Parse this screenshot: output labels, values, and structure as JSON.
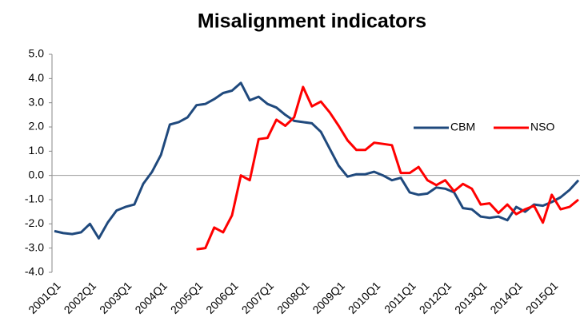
{
  "chart_data": {
    "type": "line",
    "title": "Misalignment indicators",
    "categories": [
      "2001Q1",
      null,
      null,
      null,
      "2002Q1",
      null,
      null,
      null,
      "2003Q1",
      null,
      null,
      null,
      "2004Q1",
      null,
      null,
      null,
      "2005Q1",
      null,
      null,
      null,
      "2006Q1",
      null,
      null,
      null,
      "2007Q1",
      null,
      null,
      null,
      "2008Q1",
      null,
      null,
      null,
      "2009Q1",
      null,
      null,
      null,
      "2010Q1",
      null,
      null,
      null,
      "2011Q1",
      null,
      null,
      null,
      "2012Q1",
      null,
      null,
      null,
      "2013Q1",
      null,
      null,
      null,
      "2014Q1",
      null,
      null,
      null,
      "2015Q1",
      null,
      null,
      null
    ],
    "series": [
      {
        "name": "CBM",
        "color": "#1f497d",
        "values": [
          -2.3,
          -2.38,
          -2.42,
          -2.35,
          -2.0,
          -2.6,
          -1.95,
          -1.45,
          -1.3,
          -1.2,
          -0.35,
          0.15,
          0.85,
          2.1,
          2.2,
          2.4,
          2.9,
          2.95,
          3.15,
          3.4,
          3.5,
          3.82,
          3.1,
          3.25,
          2.95,
          2.8,
          2.5,
          2.25,
          2.2,
          2.15,
          1.8,
          1.1,
          0.4,
          -0.05,
          0.05,
          0.05,
          0.15,
          0.0,
          -0.2,
          -0.1,
          -0.7,
          -0.8,
          -0.75,
          -0.5,
          -0.55,
          -0.7,
          -1.35,
          -1.4,
          -1.7,
          -1.75,
          -1.7,
          -1.85,
          -1.3,
          -1.5,
          -1.2,
          -1.25,
          -1.1,
          -0.9,
          -0.6,
          -0.2
        ]
      },
      {
        "name": "NSO",
        "color": "#ff0000",
        "values": [
          null,
          null,
          null,
          null,
          null,
          null,
          null,
          null,
          null,
          null,
          null,
          null,
          null,
          null,
          null,
          null,
          -3.05,
          -3.0,
          -2.15,
          -2.35,
          -1.65,
          0.0,
          -0.2,
          1.5,
          1.55,
          2.3,
          2.05,
          2.4,
          3.65,
          2.85,
          3.05,
          2.6,
          2.05,
          1.45,
          1.05,
          1.05,
          1.35,
          1.3,
          1.25,
          0.1,
          0.1,
          0.35,
          -0.2,
          -0.4,
          -0.2,
          -0.65,
          -0.35,
          -0.55,
          -1.2,
          -1.15,
          -1.55,
          -1.2,
          -1.6,
          -1.4,
          -1.25,
          -1.95,
          -0.8,
          -1.4,
          -1.3,
          -1.0
        ]
      }
    ],
    "ylim": [
      -4,
      5
    ],
    "yticks": [
      {
        "value": -4,
        "label": "-4.0"
      },
      {
        "value": -3,
        "label": "-3.0"
      },
      {
        "value": -2,
        "label": "-2.0"
      },
      {
        "value": -1,
        "label": "-1.0"
      },
      {
        "value": 0,
        "label": "0.0"
      },
      {
        "value": 1,
        "label": "1.0"
      },
      {
        "value": 2,
        "label": "2.0"
      },
      {
        "value": 3,
        "label": "3.0"
      },
      {
        "value": 4,
        "label": "4.0"
      },
      {
        "value": 5,
        "label": "5.0"
      }
    ],
    "legend": "right"
  }
}
